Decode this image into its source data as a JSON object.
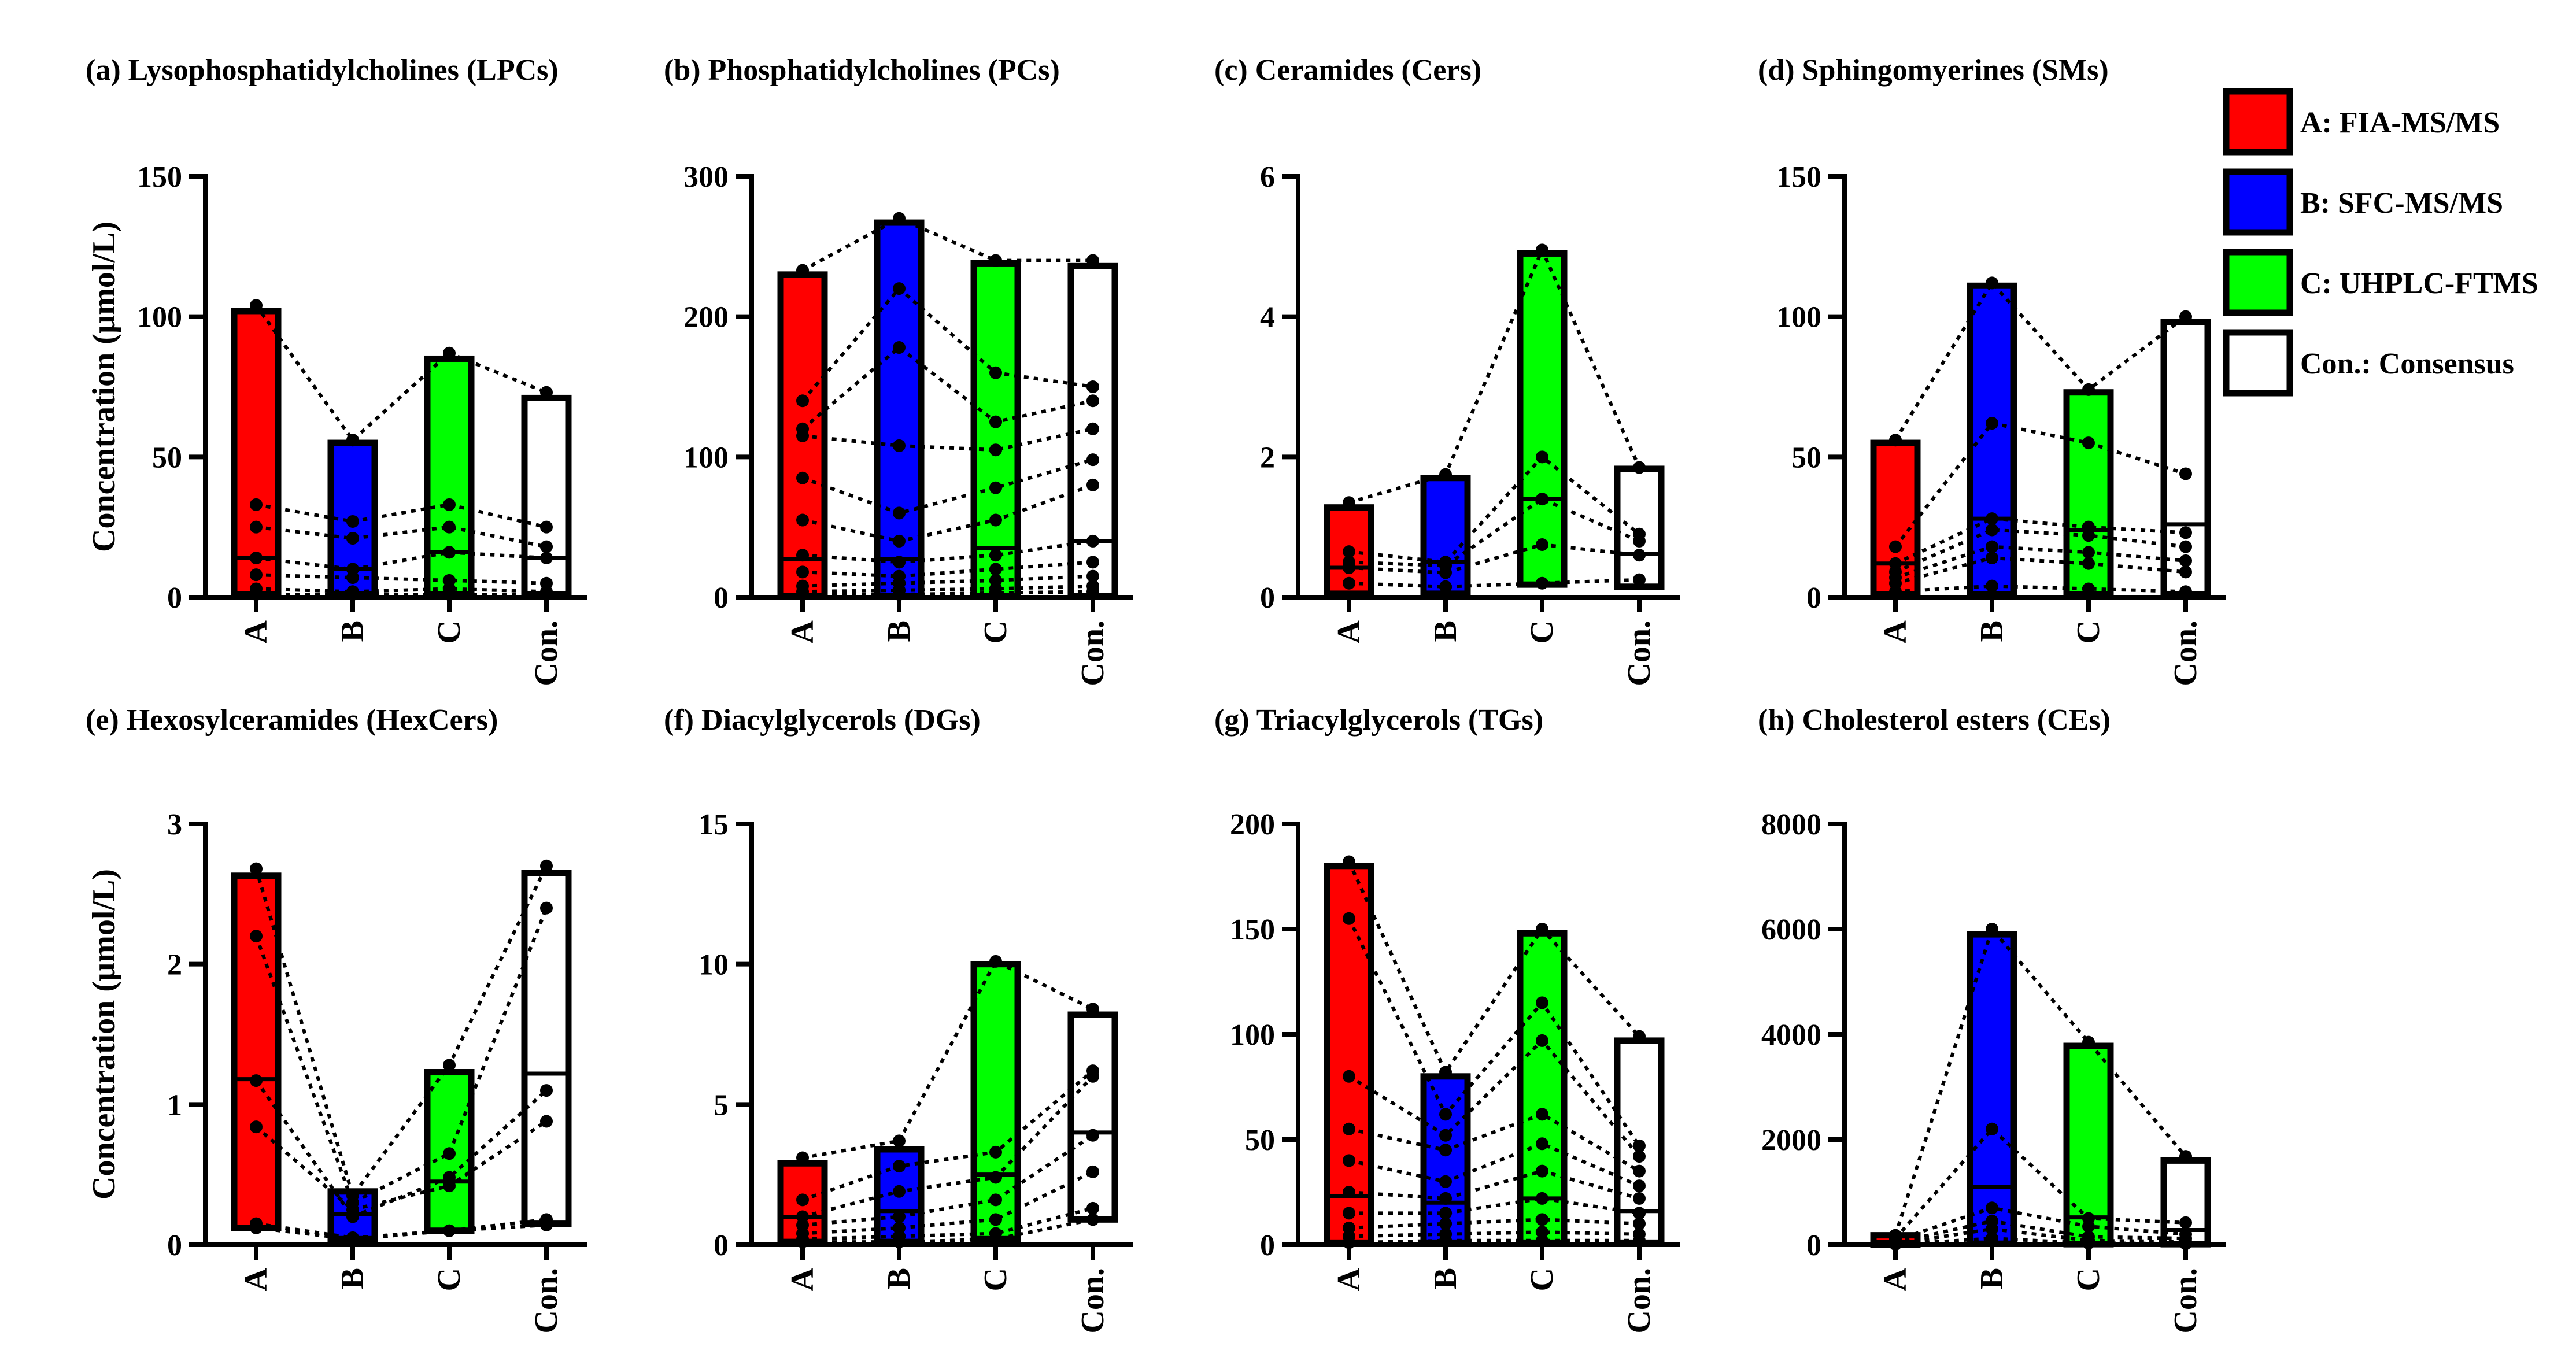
{
  "figure": {
    "ylabel": "Concentration (µmol/L)",
    "legend": [
      {
        "key": "A",
        "label": "A: FIA-MS/MS",
        "color": "#ff0000"
      },
      {
        "key": "B",
        "label": "B: SFC-MS/MS",
        "color": "#0000ff"
      },
      {
        "key": "C",
        "label": "C: UHPLC-FTMS",
        "color": "#00ff00"
      },
      {
        "key": "Con.",
        "label": "Con.: Consensus",
        "color": "#ffffff"
      }
    ]
  },
  "chart_data": [
    {
      "type": "bar",
      "title": "(a) Lysophosphatidylcholines (LPCs)",
      "categories": [
        "A",
        "B",
        "C",
        "Con."
      ],
      "ylabel": "Concentration (µmol/L)",
      "ylim": [
        0,
        150
      ],
      "yticks": [
        0,
        50,
        100,
        150
      ],
      "ytick_labels": [
        "0",
        "50",
        "100",
        "150"
      ],
      "bars": [
        {
          "max": 102,
          "median": 14,
          "min": 1
        },
        {
          "max": 55,
          "median": 10,
          "min": 1
        },
        {
          "max": 85,
          "median": 16,
          "min": 1
        },
        {
          "max": 71,
          "median": 14,
          "min": 1
        }
      ],
      "species": [
        [
          104,
          56,
          87,
          73
        ],
        [
          33,
          27,
          33,
          25
        ],
        [
          25,
          21,
          25,
          18
        ],
        [
          14,
          10,
          16,
          14
        ],
        [
          8,
          7,
          6,
          5
        ],
        [
          3,
          2,
          3,
          2
        ],
        [
          1,
          1,
          1,
          1
        ]
      ]
    },
    {
      "type": "bar",
      "title": "(b) Phosphatidylcholines (PCs)",
      "categories": [
        "A",
        "B",
        "C",
        "Con."
      ],
      "ylabel": "",
      "ylim": [
        0,
        300
      ],
      "yticks": [
        0,
        100,
        200,
        300
      ],
      "ytick_labels": [
        "0",
        "100",
        "200",
        "300"
      ],
      "bars": [
        {
          "max": 230,
          "median": 27,
          "min": 1
        },
        {
          "max": 267,
          "median": 27,
          "min": 1
        },
        {
          "max": 238,
          "median": 35,
          "min": 1
        },
        {
          "max": 236,
          "median": 40,
          "min": 1
        }
      ],
      "species": [
        [
          233,
          270,
          240,
          240
        ],
        [
          140,
          220,
          160,
          150
        ],
        [
          120,
          178,
          125,
          140
        ],
        [
          115,
          108,
          105,
          120
        ],
        [
          85,
          60,
          78,
          98
        ],
        [
          55,
          40,
          55,
          80
        ],
        [
          30,
          25,
          30,
          40
        ],
        [
          18,
          15,
          20,
          25
        ],
        [
          8,
          10,
          12,
          15
        ],
        [
          4,
          5,
          6,
          8
        ],
        [
          2,
          2,
          3,
          4
        ]
      ]
    },
    {
      "type": "bar",
      "title": "(c) Ceramides (Cers)",
      "categories": [
        "A",
        "B",
        "C",
        "Con."
      ],
      "ylabel": "",
      "ylim": [
        0,
        6
      ],
      "yticks": [
        0,
        2,
        4,
        6
      ],
      "ytick_labels": [
        "0",
        "2",
        "4",
        "6"
      ],
      "bars": [
        {
          "max": 1.28,
          "median": 0.42,
          "min": 0.05
        },
        {
          "max": 1.7,
          "median": 0.5,
          "min": 0.05
        },
        {
          "max": 4.9,
          "median": 1.4,
          "min": 0.18
        },
        {
          "max": 1.83,
          "median": 0.62,
          "min": 0.15
        }
      ],
      "species": [
        [
          1.35,
          1.75,
          4.95,
          1.85
        ],
        [
          0.65,
          0.5,
          2.0,
          0.9
        ],
        [
          0.5,
          0.45,
          1.4,
          0.8
        ],
        [
          0.42,
          0.35,
          0.75,
          0.6
        ],
        [
          0.2,
          0.15,
          0.2,
          0.25
        ]
      ]
    },
    {
      "type": "bar",
      "title": "(d) Sphingomyerines (SMs)",
      "categories": [
        "A",
        "B",
        "C",
        "Con."
      ],
      "ylabel": "",
      "ylim": [
        0,
        150
      ],
      "yticks": [
        0,
        50,
        100,
        150
      ],
      "ytick_labels": [
        "0",
        "50",
        "100",
        "150"
      ],
      "bars": [
        {
          "max": 55,
          "median": 12,
          "min": 1
        },
        {
          "max": 111,
          "median": 28,
          "min": 1
        },
        {
          "max": 73,
          "median": 24,
          "min": 1
        },
        {
          "max": 98,
          "median": 26,
          "min": 1
        }
      ],
      "species": [
        [
          56,
          112,
          74,
          100
        ],
        [
          18,
          62,
          55,
          44
        ],
        [
          12,
          28,
          25,
          23
        ],
        [
          9,
          24,
          22,
          18
        ],
        [
          7,
          18,
          16,
          13
        ],
        [
          5,
          14,
          12,
          9
        ],
        [
          2,
          4,
          3,
          2
        ]
      ]
    },
    {
      "type": "bar",
      "title": "(e) Hexosylceramides (HexCers)",
      "categories": [
        "A",
        "B",
        "C",
        "Con."
      ],
      "ylabel": "Concentration (µmol/L)",
      "ylim": [
        0,
        3
      ],
      "yticks": [
        0,
        1,
        2,
        3
      ],
      "ytick_labels": [
        "0",
        "1",
        "2",
        "3"
      ],
      "bars": [
        {
          "max": 2.63,
          "median": 1.18,
          "min": 0.12
        },
        {
          "max": 0.38,
          "median": 0.22,
          "min": 0.04
        },
        {
          "max": 1.23,
          "median": 0.45,
          "min": 0.1
        },
        {
          "max": 2.65,
          "median": 1.22,
          "min": 0.15
        }
      ],
      "species": [
        [
          2.68,
          0.35,
          1.28,
          2.7
        ],
        [
          2.2,
          0.3,
          0.65,
          2.4
        ],
        [
          1.17,
          0.2,
          0.48,
          1.1
        ],
        [
          0.84,
          0.25,
          0.42,
          0.88
        ],
        [
          0.15,
          0.05,
          0.1,
          0.18
        ],
        [
          0.12,
          0.04,
          0.1,
          0.14
        ]
      ]
    },
    {
      "type": "bar",
      "title": "(f) Diacylglycerols (DGs)",
      "categories": [
        "A",
        "B",
        "C",
        "Con."
      ],
      "ylabel": "",
      "ylim": [
        0,
        15
      ],
      "yticks": [
        0,
        5,
        10,
        15
      ],
      "ytick_labels": [
        "0",
        "5",
        "10",
        "15"
      ],
      "bars": [
        {
          "max": 2.9,
          "median": 1.0,
          "min": 0.1
        },
        {
          "max": 3.4,
          "median": 1.2,
          "min": 0.1
        },
        {
          "max": 10.0,
          "median": 2.5,
          "min": 0.2
        },
        {
          "max": 8.2,
          "median": 4.0,
          "min": 0.9
        }
      ],
      "species": [
        [
          3.1,
          3.7,
          10.1,
          8.4
        ],
        [
          1.6,
          2.8,
          3.3,
          6.2
        ],
        [
          1.0,
          1.9,
          2.4,
          6.0
        ],
        [
          0.7,
          1.0,
          1.6,
          3.9
        ],
        [
          0.4,
          0.6,
          0.9,
          2.6
        ],
        [
          0.2,
          0.3,
          0.4,
          1.3
        ],
        [
          0.1,
          0.1,
          0.2,
          0.9
        ]
      ]
    },
    {
      "type": "bar",
      "title": "(g) Triacylglycerols (TGs)",
      "categories": [
        "A",
        "B",
        "C",
        "Con."
      ],
      "ylabel": "",
      "ylim": [
        0,
        200
      ],
      "yticks": [
        0,
        50,
        100,
        150,
        200
      ],
      "ytick_labels": [
        "0",
        "50",
        "100",
        "150",
        "200"
      ],
      "bars": [
        {
          "max": 180,
          "median": 23,
          "min": 1
        },
        {
          "max": 80,
          "median": 20,
          "min": 1
        },
        {
          "max": 148,
          "median": 22,
          "min": 1
        },
        {
          "max": 97,
          "median": 16,
          "min": 1
        }
      ],
      "species": [
        [
          182,
          82,
          150,
          99
        ],
        [
          155,
          62,
          115,
          47
        ],
        [
          80,
          52,
          97,
          42
        ],
        [
          55,
          45,
          62,
          35
        ],
        [
          40,
          30,
          48,
          28
        ],
        [
          25,
          22,
          35,
          22
        ],
        [
          15,
          15,
          22,
          15
        ],
        [
          8,
          10,
          12,
          10
        ],
        [
          4,
          5,
          6,
          5
        ],
        [
          1,
          2,
          2,
          2
        ]
      ]
    },
    {
      "type": "bar",
      "title": "(h) Cholesterol esters (CEs)",
      "categories": [
        "A",
        "B",
        "C",
        "Con."
      ],
      "ylabel": "",
      "ylim": [
        0,
        8000
      ],
      "yticks": [
        0,
        2000,
        4000,
        6000,
        8000
      ],
      "ytick_labels": [
        "0",
        "2000",
        "4000",
        "6000",
        "8000"
      ],
      "bars": [
        {
          "max": 180,
          "median": 60,
          "min": 5
        },
        {
          "max": 5900,
          "median": 1100,
          "min": 20
        },
        {
          "max": 3780,
          "median": 520,
          "min": 10
        },
        {
          "max": 1600,
          "median": 280,
          "min": 10
        }
      ],
      "species": [
        [
          180,
          6000,
          3850,
          1680
        ],
        [
          120,
          2200,
          500,
          420
        ],
        [
          80,
          700,
          350,
          200
        ],
        [
          40,
          450,
          150,
          120
        ],
        [
          15,
          300,
          80,
          60
        ],
        [
          8,
          120,
          30,
          20
        ]
      ]
    }
  ]
}
